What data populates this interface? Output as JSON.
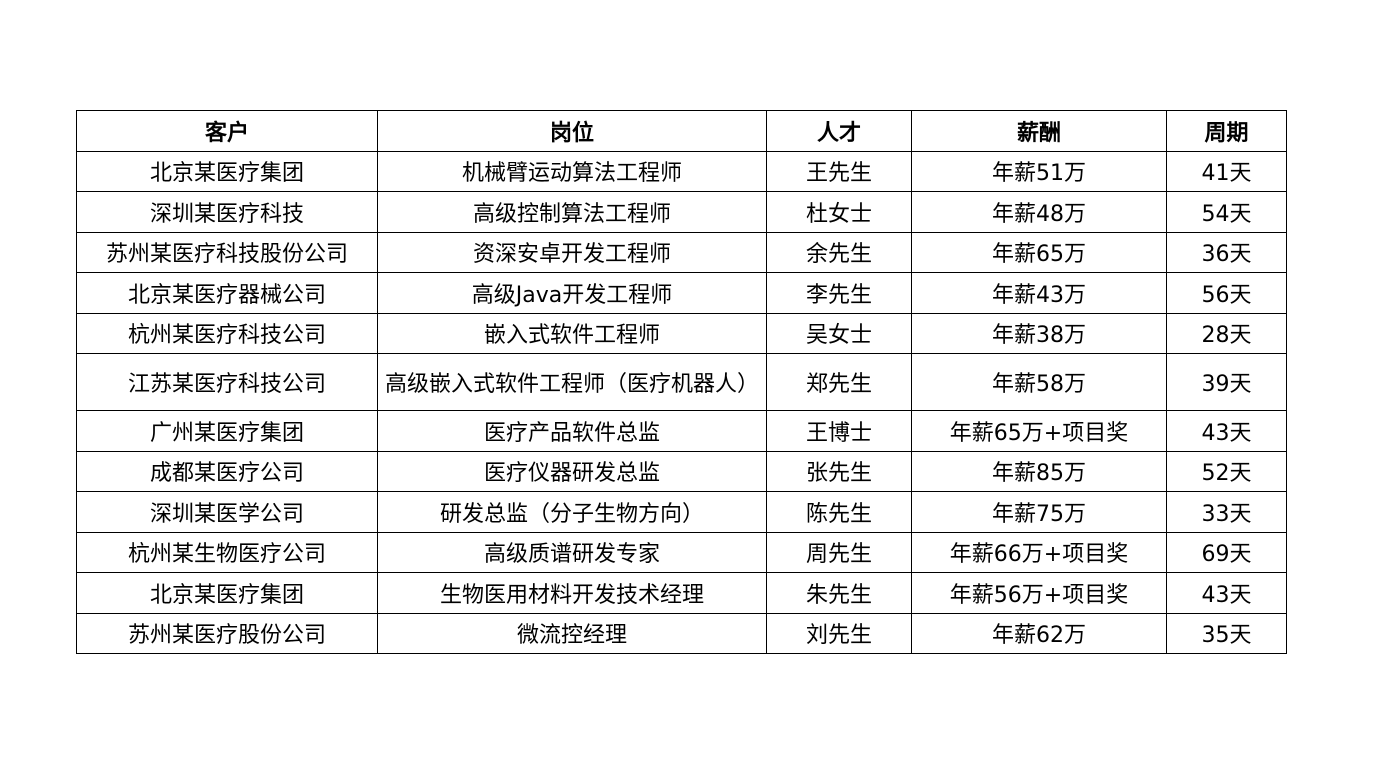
{
  "table": {
    "headers": [
      "客户",
      "岗位",
      "人才",
      "薪酬",
      "周期"
    ],
    "rows": [
      [
        "北京某医疗集团",
        "机械臂运动算法工程师",
        "王先生",
        "年薪51万",
        "41天"
      ],
      [
        "深圳某医疗科技",
        "高级控制算法工程师",
        "杜女士",
        "年薪48万",
        "54天"
      ],
      [
        "苏州某医疗科技股份公司",
        "资深安卓开发工程师",
        "余先生",
        "年薪65万",
        "36天"
      ],
      [
        "北京某医疗器械公司",
        "高级Java开发工程师",
        "李先生",
        "年薪43万",
        "56天"
      ],
      [
        "杭州某医疗科技公司",
        "嵌入式软件工程师",
        "吴女士",
        "年薪38万",
        "28天"
      ],
      [
        "江苏某医疗科技公司",
        "高级嵌入式软件工程师（医疗机器人）",
        "郑先生",
        "年薪58万",
        "39天"
      ],
      [
        "广州某医疗集团",
        "医疗产品软件总监",
        "王博士",
        "年薪65万+项目奖",
        "43天"
      ],
      [
        "成都某医疗公司",
        "医疗仪器研发总监",
        "张先生",
        "年薪85万",
        "52天"
      ],
      [
        "深圳某医学公司",
        "研发总监（分子生物方向）",
        "陈先生",
        "年薪75万",
        "33天"
      ],
      [
        "杭州某生物医疗公司",
        "高级质谱研发专家",
        "周先生",
        "年薪66万+项目奖",
        "69天"
      ],
      [
        "北京某医疗集团",
        "生物医用材料开发技术经理",
        "朱先生",
        "年薪56万+项目奖",
        "43天"
      ],
      [
        "苏州某医疗股份公司",
        "微流控经理",
        "刘先生",
        "年薪62万",
        "35天"
      ]
    ]
  }
}
